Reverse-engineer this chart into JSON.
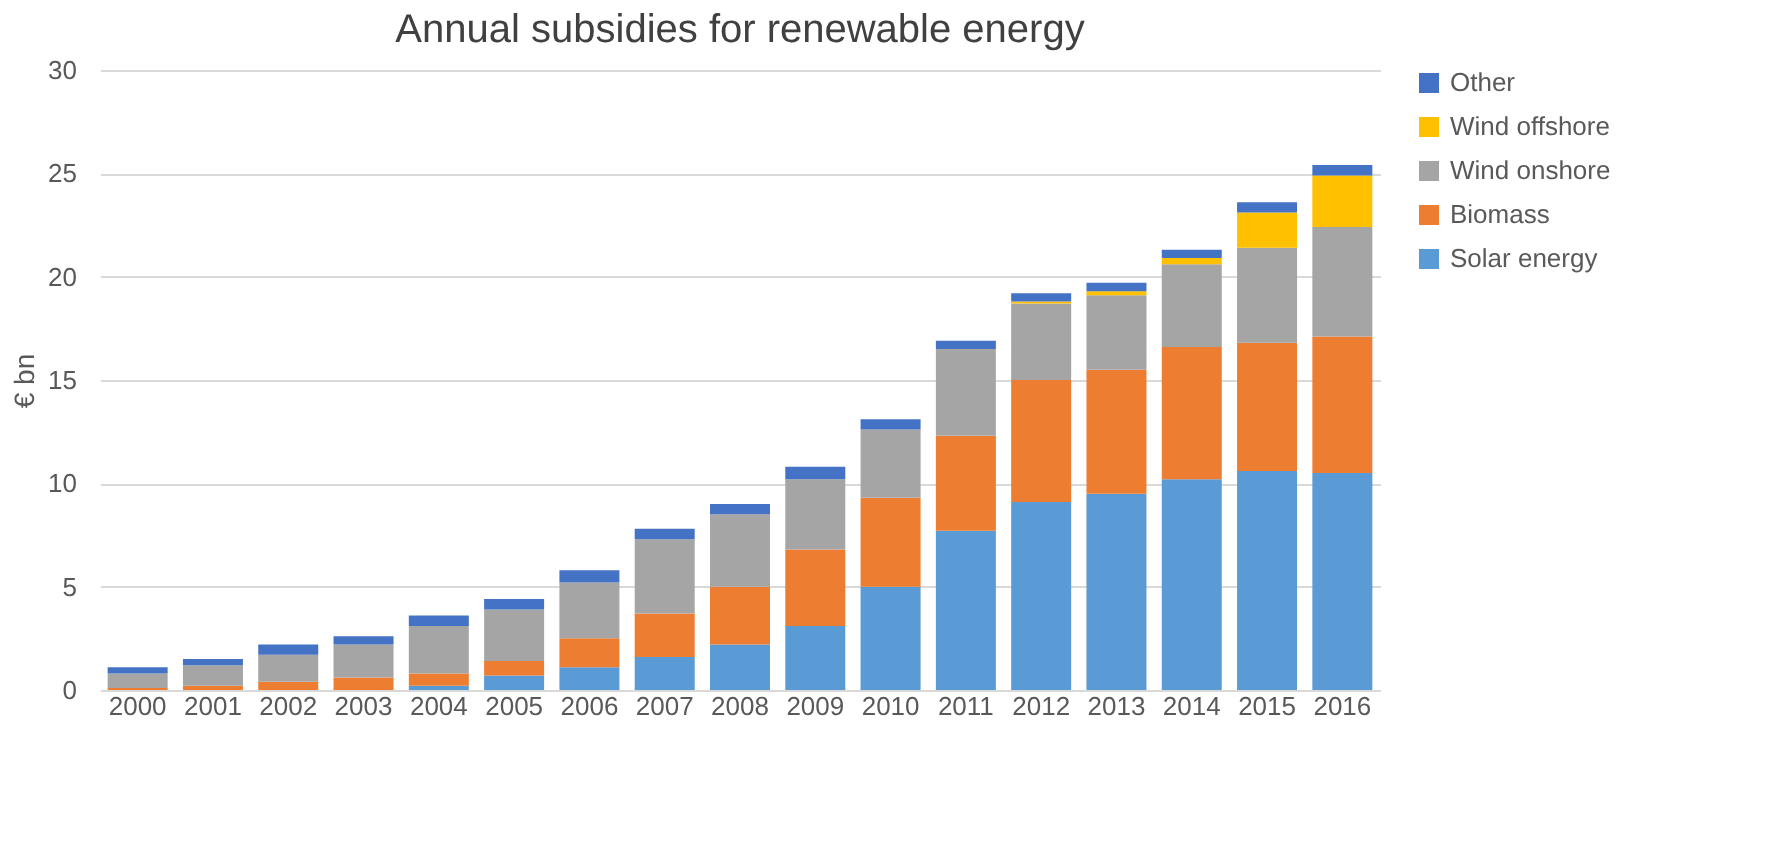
{
  "chart_data": {
    "type": "bar",
    "stacked": true,
    "title": "Annual subsidies for renewable energy",
    "ylabel": "€ bn",
    "categories": [
      "2000",
      "2001",
      "2002",
      "2003",
      "2004",
      "2005",
      "2006",
      "2007",
      "2008",
      "2009",
      "2010",
      "2011",
      "2012",
      "2013",
      "2014",
      "2015",
      "2016"
    ],
    "series": [
      {
        "name": "Solar energy",
        "color": "#5b9bd5",
        "values": [
          0,
          0,
          0,
          0,
          0.2,
          0.7,
          1.1,
          1.6,
          2.2,
          3.1,
          5.0,
          7.7,
          9.1,
          9.5,
          10.2,
          10.6,
          10.5
        ]
      },
      {
        "name": "Biomass",
        "color": "#ed7d31",
        "values": [
          0.1,
          0.2,
          0.4,
          0.6,
          0.6,
          0.7,
          1.4,
          2.1,
          2.8,
          3.7,
          4.3,
          4.6,
          5.9,
          6.0,
          6.4,
          6.2,
          6.6
        ]
      },
      {
        "name": "Wind onshore",
        "color": "#a5a5a5",
        "values": [
          0.7,
          1.0,
          1.3,
          1.6,
          2.3,
          2.5,
          2.7,
          3.6,
          3.5,
          3.4,
          3.3,
          4.2,
          3.7,
          3.6,
          4.0,
          4.6,
          5.3
        ]
      },
      {
        "name": "Wind offshore",
        "color": "#ffc000",
        "values": [
          0,
          0,
          0,
          0,
          0,
          0,
          0,
          0,
          0,
          0,
          0,
          0,
          0.1,
          0.2,
          0.3,
          1.7,
          2.5
        ]
      },
      {
        "name": "Other",
        "color": "#4472c4",
        "values": [
          0.3,
          0.3,
          0.5,
          0.4,
          0.5,
          0.5,
          0.6,
          0.5,
          0.5,
          0.6,
          0.5,
          0.4,
          0.4,
          0.4,
          0.4,
          0.5,
          0.5
        ]
      }
    ],
    "ylim": [
      0,
      30
    ],
    "yticks": [
      0,
      5,
      10,
      15,
      20,
      25,
      30
    ],
    "grid": "y",
    "legend": "right"
  }
}
